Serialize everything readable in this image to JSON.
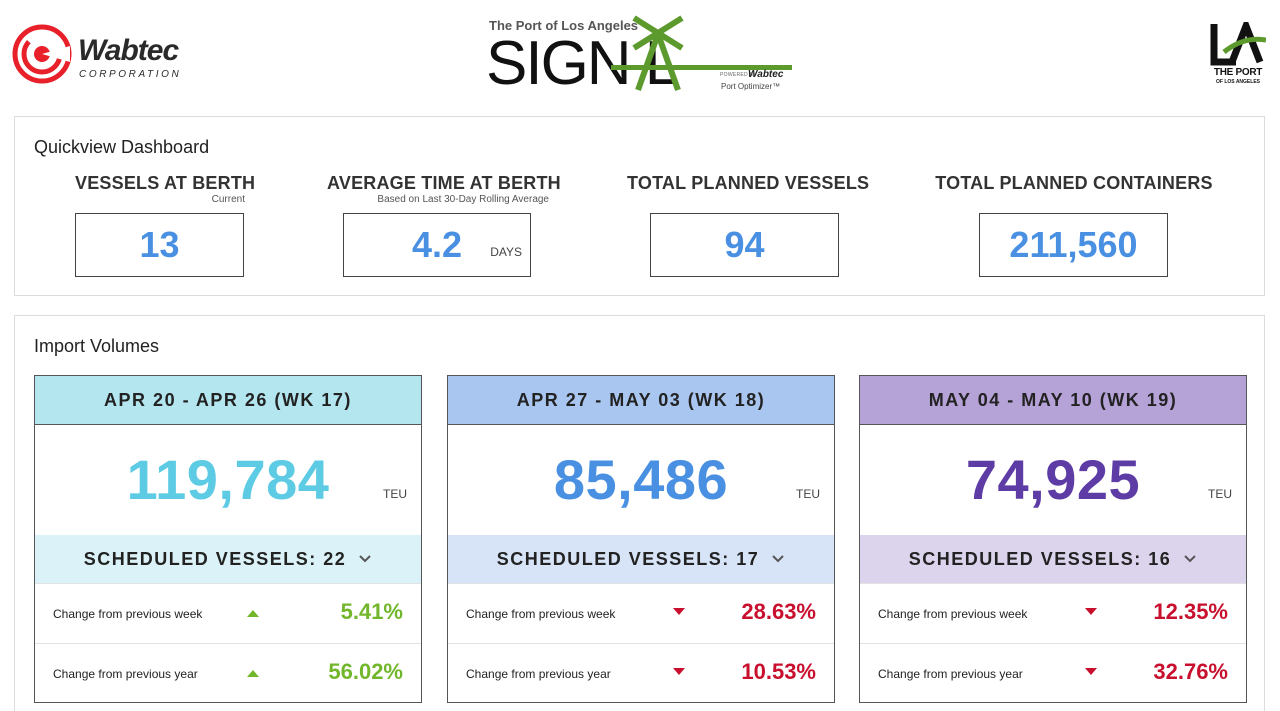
{
  "header": {
    "wabtec_name": "Wabtec",
    "wabtec_corp": "CORPORATION",
    "signal_top": "The Port of Los Angeles",
    "signal_word": "SIGN  L",
    "signal_powered": "POWERED BY",
    "signal_wabtec": "Wabtec",
    "signal_optimizer": "Port Optimizer™",
    "la_the_port": "THE PORT",
    "la_of_la": "OF LOS ANGELES"
  },
  "quickview": {
    "title": "Quickview Dashboard",
    "metrics": [
      {
        "label": "VESSELS AT BERTH",
        "sub": "Current",
        "value": "13",
        "unit": ""
      },
      {
        "label": "AVERAGE TIME AT BERTH",
        "sub": "Based on Last 30-Day Rolling Average",
        "value": "4.2",
        "unit": "DAYS"
      },
      {
        "label": "TOTAL PLANNED VESSELS",
        "sub": "",
        "value": "94",
        "unit": ""
      },
      {
        "label": "TOTAL PLANNED CONTAINERS",
        "sub": "",
        "value": "211,560",
        "unit": ""
      }
    ],
    "value_color": "#4a90e2"
  },
  "import_volumes": {
    "title": "Import Volumes",
    "weeks": [
      {
        "range": "APR 20 - APR 26 (WK 17)",
        "teu": "119,784",
        "teu_unit": "TEU",
        "scheduled": "SCHEDULED VESSELS: 22",
        "header_color": "#b4e6f0",
        "teu_color": "#5ccbe3",
        "sched_color": "#dbf3f8",
        "rows": [
          {
            "label": "Change from previous week",
            "direction": "up",
            "value": "5.41%"
          },
          {
            "label": "Change from previous year",
            "direction": "up",
            "value": "56.02%"
          }
        ]
      },
      {
        "range": "APR 27 - MAY 03 (WK 18)",
        "teu": "85,486",
        "teu_unit": "TEU",
        "scheduled": "SCHEDULED VESSELS: 17",
        "header_color": "#a9c6f0",
        "teu_color": "#4a90e2",
        "sched_color": "#d7e4f8",
        "rows": [
          {
            "label": "Change from previous week",
            "direction": "down",
            "value": "28.63%"
          },
          {
            "label": "Change from previous year",
            "direction": "down",
            "value": "10.53%"
          }
        ]
      },
      {
        "range": "MAY 04 - MAY 10 (WK 19)",
        "teu": "74,925",
        "teu_unit": "TEU",
        "scheduled": "SCHEDULED VESSELS: 16",
        "header_color": "#b5a2d6",
        "teu_color": "#5e3ca6",
        "sched_color": "#dcd4ec",
        "rows": [
          {
            "label": "Change from previous week",
            "direction": "down",
            "value": "12.35%"
          },
          {
            "label": "Change from previous year",
            "direction": "down",
            "value": "32.76%"
          }
        ]
      }
    ],
    "up_color": "#72b62b",
    "down_color": "#c8102e"
  }
}
